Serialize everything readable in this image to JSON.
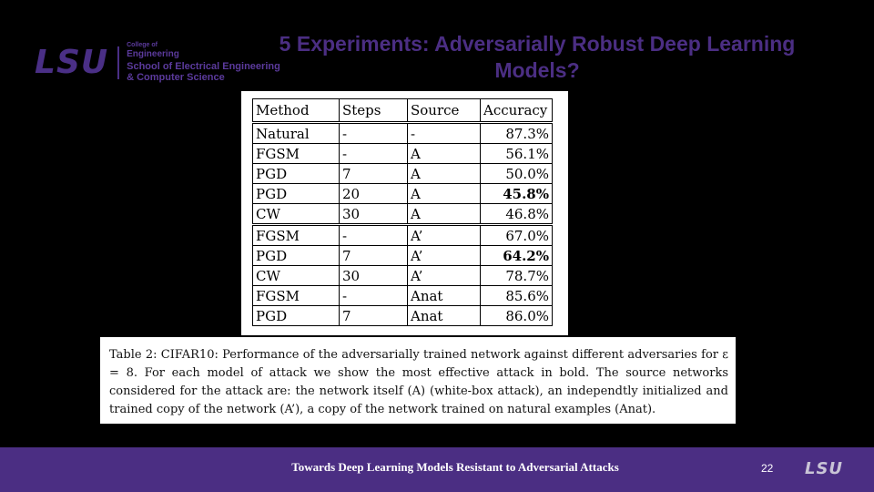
{
  "logo": {
    "wordmark": "LSU",
    "college_small": "College of",
    "college_eng": "Engineering",
    "line1": "School of Electrical Engineering",
    "line2": "& Computer Science"
  },
  "slide": {
    "title": "5 Experiments: Adversarially Robust Deep Learning Models?"
  },
  "table": {
    "headers": [
      "Method",
      "Steps",
      "Source",
      "Accuracy"
    ],
    "rows": [
      {
        "method": "Natural",
        "steps": "-",
        "source": "-",
        "accuracy": "87.3%"
      },
      {
        "method": "FGSM",
        "steps": "-",
        "source": "A",
        "accuracy": "56.1%"
      },
      {
        "method": "PGD",
        "steps": "7",
        "source": "A",
        "accuracy": "50.0%"
      },
      {
        "method": "PGD",
        "steps": "20",
        "source": "A",
        "accuracy": "45.8%"
      },
      {
        "method": "CW",
        "steps": "30",
        "source": "A",
        "accuracy": "46.8%"
      },
      {
        "method": "FGSM",
        "steps": "-",
        "source": "A’",
        "accuracy": "67.0%"
      },
      {
        "method": "PGD",
        "steps": "7",
        "source": "A’",
        "accuracy": "64.2%"
      },
      {
        "method": "CW",
        "steps": "30",
        "source": "A’",
        "accuracy": "78.7%"
      },
      {
        "method": "FGSM",
        "steps": "-",
        "source": "Anat",
        "accuracy": "85.6%"
      },
      {
        "method": "PGD",
        "steps": "7",
        "source": "Anat",
        "accuracy": "86.0%"
      }
    ]
  },
  "caption": {
    "text": "Table 2: CIFAR10: Performance of the adversarially trained network against different adversaries for ε = 8. For each model of attack we show the most effective attack in bold. The source networks considered for the attack are: the network itself (A) (white-box attack), an independtly initialized and trained copy of the network (A’), a copy of the network trained on natural examples (Anat)."
  },
  "footer": {
    "title": "Towards Deep Learning Models Resistant to Adversarial Attacks",
    "page_number": "22",
    "logo": "LSU"
  }
}
